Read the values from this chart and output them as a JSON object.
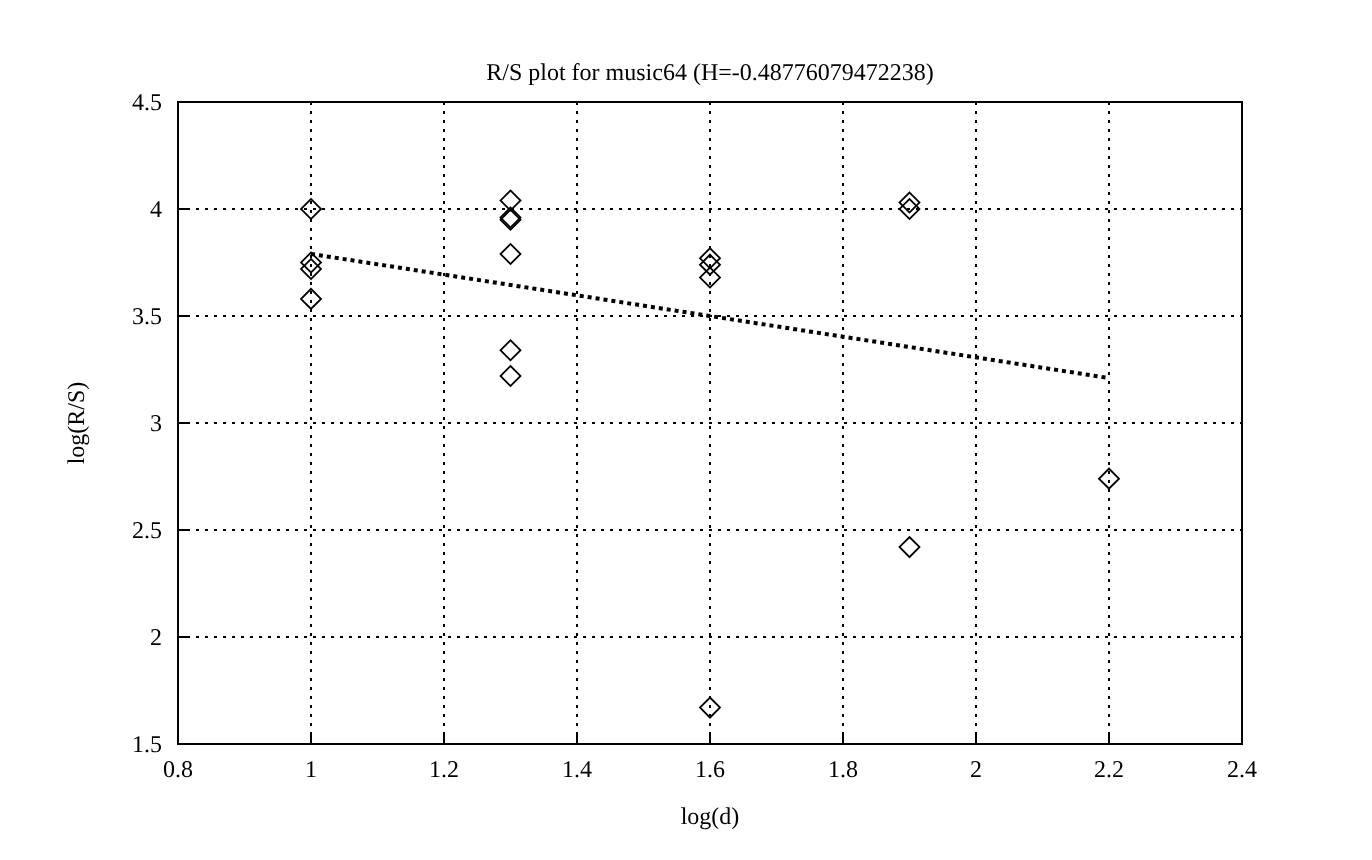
{
  "chart_data": {
    "type": "scatter",
    "title": "R/S plot for music64 (H=-0.48776079472238)",
    "xlabel": "log(d)",
    "ylabel": "log(R/S)",
    "xlim": [
      0.8,
      2.4
    ],
    "xticks": [
      0.8,
      1,
      1.2,
      1.4,
      1.6,
      1.8,
      2,
      2.2,
      2.4
    ],
    "ylim": [
      1.5,
      4.5
    ],
    "yticks": [
      1.5,
      2,
      2.5,
      3,
      3.5,
      4,
      4.5
    ],
    "grid": true,
    "series": [
      {
        "marker": "diamond",
        "color": "#000000",
        "x": [
          1,
          1,
          1,
          1,
          1.3,
          1.3,
          1.3,
          1.3,
          1.3,
          1.3,
          1.6,
          1.6,
          1.6,
          1.6,
          1.9,
          1.9,
          1.9,
          2.2
        ],
        "values": [
          4.0,
          3.75,
          3.72,
          3.58,
          4.04,
          3.96,
          3.95,
          3.79,
          3.34,
          3.22,
          3.77,
          3.74,
          3.68,
          1.67,
          4.03,
          4.0,
          2.42,
          2.74
        ]
      },
      {
        "type": "line",
        "line_style": "dotted",
        "color": "#000000",
        "x": [
          1,
          2.2
        ],
        "values": [
          3.79,
          3.21
        ]
      }
    ]
  }
}
